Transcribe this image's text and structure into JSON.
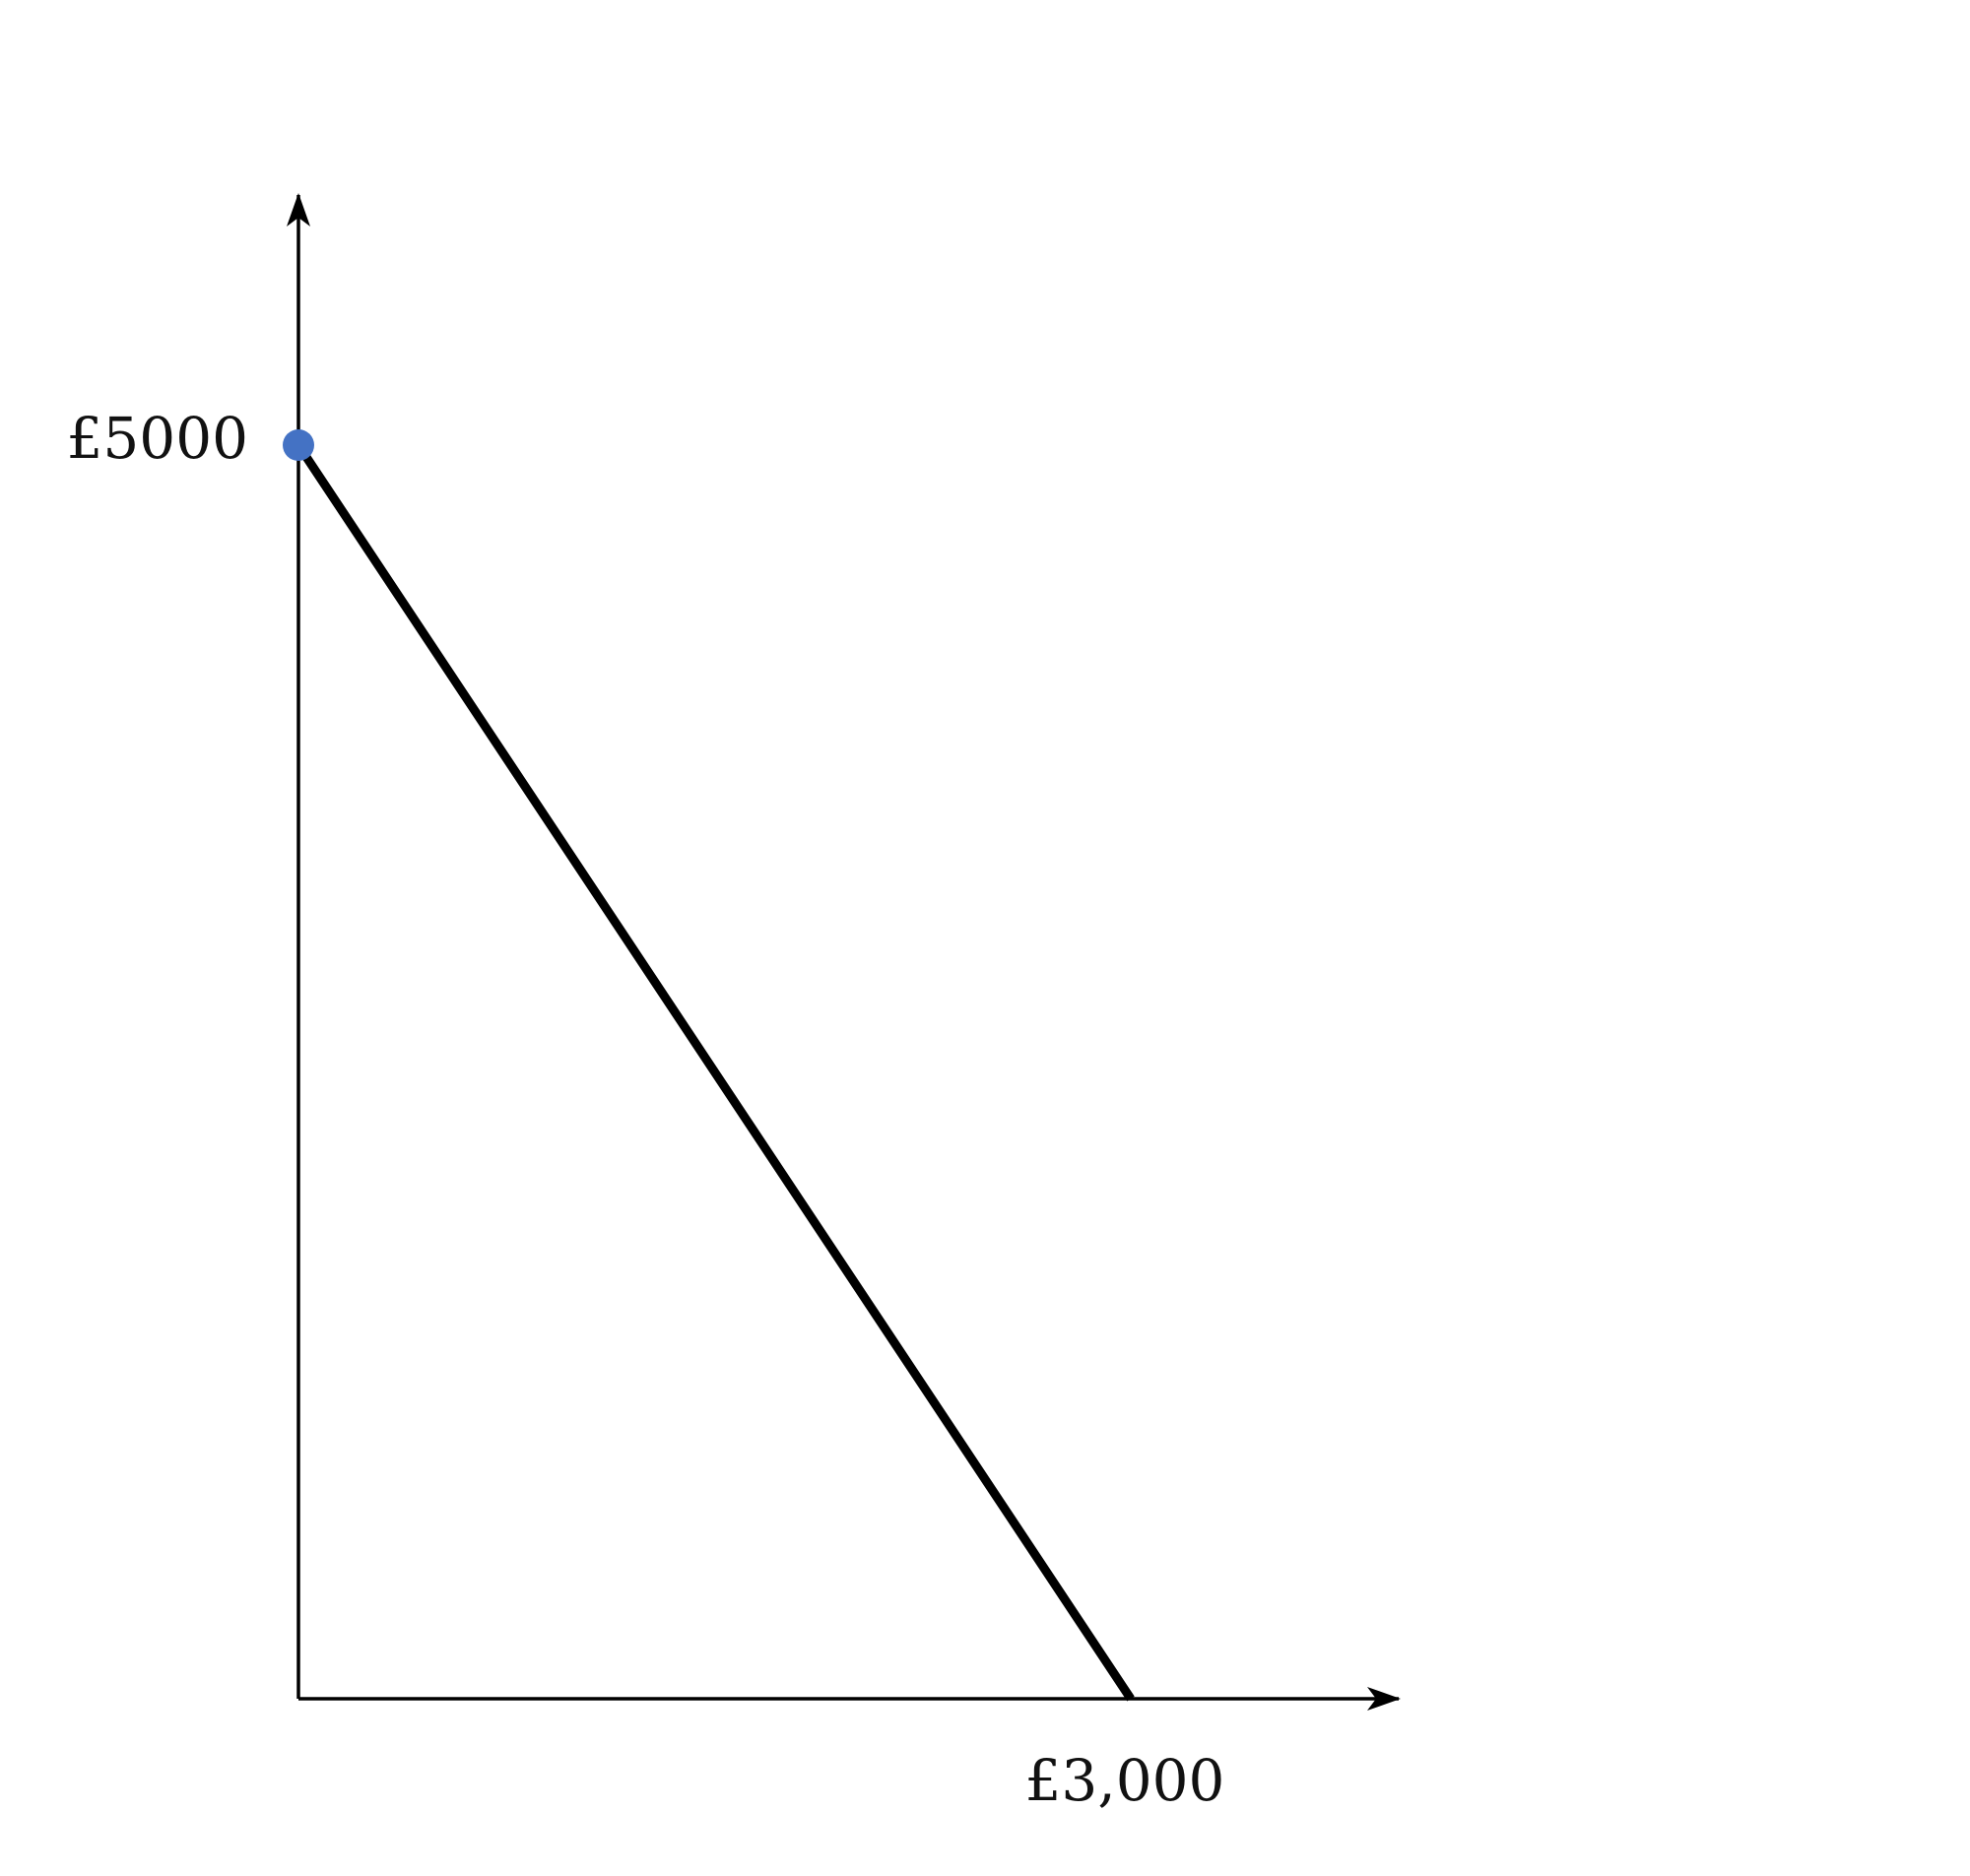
{
  "chart_data": {
    "type": "line",
    "title": "",
    "xlabel": "",
    "ylabel": "",
    "grid": false,
    "xlim": [
      0,
      4000
    ],
    "ylim": [
      0,
      6000
    ],
    "x_tick_labels": [
      {
        "value": 3000,
        "label": "£3,000"
      }
    ],
    "y_tick_labels": [
      {
        "value": 5000,
        "label": "£5000"
      }
    ],
    "series": [
      {
        "points": [
          {
            "x": 0,
            "y": 5000
          },
          {
            "x": 3000,
            "y": 0
          }
        ],
        "color": "#000000"
      }
    ],
    "highlighted_points": [
      {
        "x": 0,
        "y": 5000,
        "color": "#4472C4"
      }
    ]
  }
}
